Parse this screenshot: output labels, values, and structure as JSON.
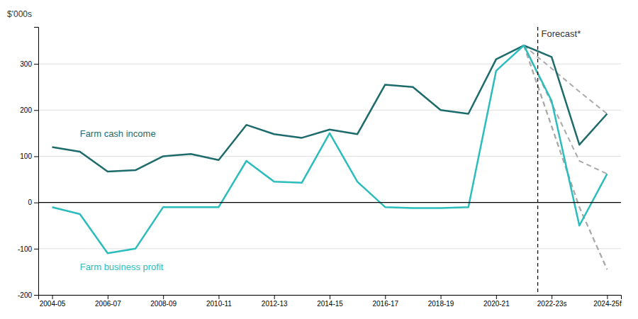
{
  "chart_data": {
    "type": "line",
    "y_label": "$'000s",
    "x": [
      0,
      1,
      2,
      3,
      4,
      5,
      6,
      7,
      8,
      9,
      10,
      11,
      12,
      13,
      14,
      15,
      16,
      17,
      18,
      19,
      20
    ],
    "xlim": [
      -0.5,
      20.5
    ],
    "xticks": [
      {
        "value": 0,
        "label": "2004-05"
      },
      {
        "value": 2,
        "label": "2006-07"
      },
      {
        "value": 4,
        "label": "2008-09"
      },
      {
        "value": 6,
        "label": "2010-11"
      },
      {
        "value": 8,
        "label": "2012-13"
      },
      {
        "value": 10,
        "label": "2014-15"
      },
      {
        "value": 12,
        "label": "2016-17"
      },
      {
        "value": 14,
        "label": "2018-19"
      },
      {
        "value": 16,
        "label": "2020-21"
      },
      {
        "value": 18,
        "label": "2022-23s"
      },
      {
        "value": 20,
        "label": "2024-25f"
      }
    ],
    "ylim": [
      -200,
      380
    ],
    "yticks": [
      -200,
      -100,
      0,
      100,
      200,
      300
    ],
    "grid": true,
    "annotations": [
      {
        "text": "Forecast*",
        "x": 17.5
      }
    ],
    "series": [
      {
        "name": "Farm cash income",
        "color": "#1d6b6b",
        "values": [
          120,
          110,
          67,
          70,
          100,
          105,
          92,
          168,
          148,
          140,
          158,
          148,
          255,
          250,
          200,
          192,
          310,
          340,
          315,
          125,
          192
        ]
      },
      {
        "name": "Farm business profit",
        "color": "#2bbcbc",
        "values": [
          -10,
          -25,
          -110,
          -100,
          -10,
          -10,
          -10,
          90,
          45,
          43,
          150,
          45,
          -10,
          -12,
          -12,
          -10,
          285,
          340,
          220,
          -50,
          62
        ]
      },
      {
        "x": [
          17,
          19,
          20
        ],
        "values": [
          340,
          240,
          192
        ],
        "color": "#aaaaaa",
        "line_style": "dashed"
      },
      {
        "x": [
          17,
          19,
          20
        ],
        "values": [
          340,
          -10,
          -145
        ],
        "color": "#aaaaaa",
        "line_style": "dashed"
      },
      {
        "x": [
          17,
          19,
          20
        ],
        "values": [
          340,
          90,
          62
        ],
        "color": "#aaaaaa",
        "line_style": "dashed"
      },
      {
        "x": [
          17,
          19,
          20
        ],
        "values": [
          340,
          -10,
          -145
        ],
        "color": "#aaaaaa",
        "line_style": "dashed"
      }
    ]
  }
}
